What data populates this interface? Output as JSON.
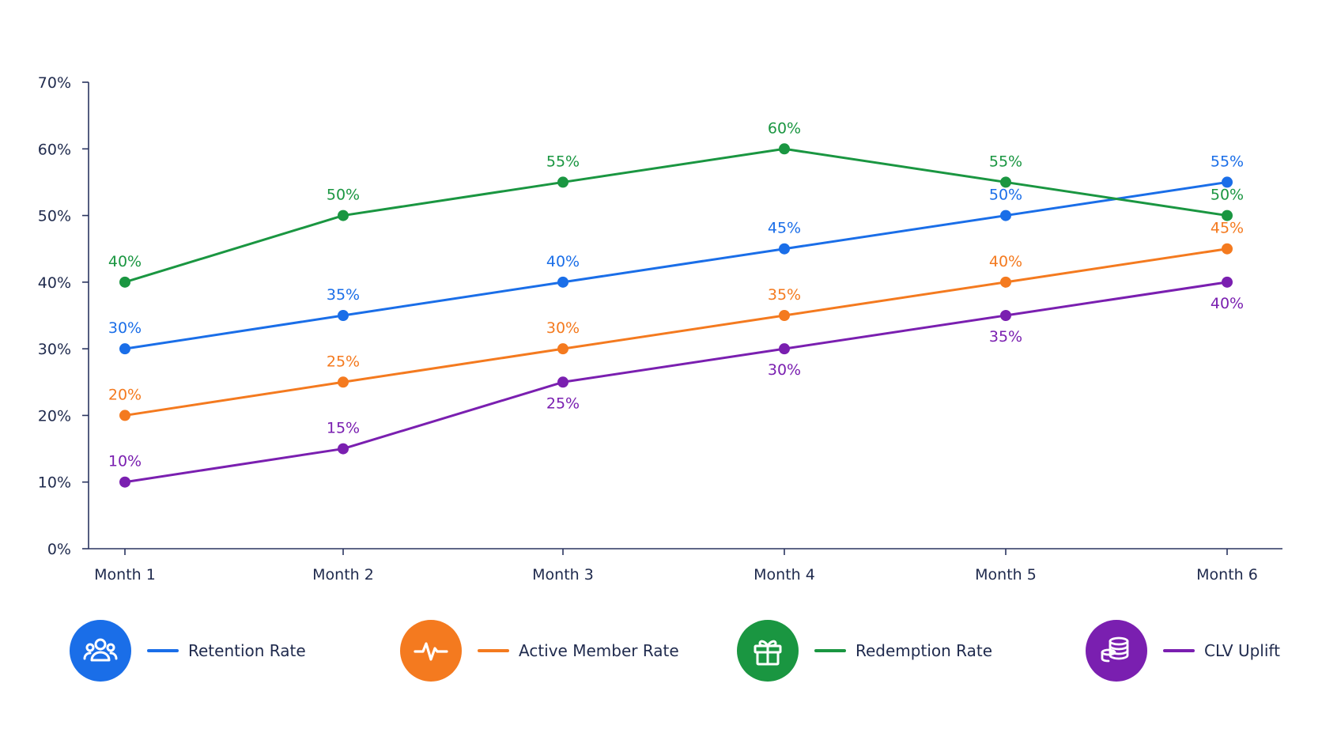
{
  "chart_data": {
    "type": "line",
    "categories": [
      "Month 1",
      "Month 2",
      "Month 3",
      "Month 4",
      "Month 5",
      "Month 6"
    ],
    "yticks": [
      "0%",
      "10%",
      "20%",
      "30%",
      "40%",
      "50%",
      "60%",
      "70%"
    ],
    "ylim": [
      0,
      70
    ],
    "grid": false,
    "legend_position": "bottom",
    "series": [
      {
        "name": "Retention Rate",
        "color": "#1a6ee8",
        "icon": "users-icon",
        "values": [
          30,
          35,
          40,
          45,
          50,
          55
        ],
        "labels": [
          "30%",
          "35%",
          "40%",
          "45%",
          "50%",
          "55%"
        ]
      },
      {
        "name": "Active Member Rate",
        "color": "#f47a1f",
        "icon": "pulse-icon",
        "values": [
          20,
          25,
          30,
          35,
          40,
          45
        ],
        "labels": [
          "20%",
          "25%",
          "30%",
          "35%",
          "40%",
          "45%"
        ]
      },
      {
        "name": "Redemption Rate",
        "color": "#1a9641",
        "icon": "gift-icon",
        "values": [
          40,
          50,
          55,
          60,
          55,
          50
        ],
        "labels": [
          "40%",
          "50%",
          "55%",
          "60%",
          "55%",
          "50%"
        ]
      },
      {
        "name": "CLV Uplift",
        "color": "#7a1fb0",
        "icon": "coins-icon",
        "values": [
          10,
          15,
          25,
          30,
          35,
          40
        ],
        "labels": [
          "10%",
          "15%",
          "25%",
          "30%",
          "35%",
          "40%"
        ]
      }
    ]
  }
}
